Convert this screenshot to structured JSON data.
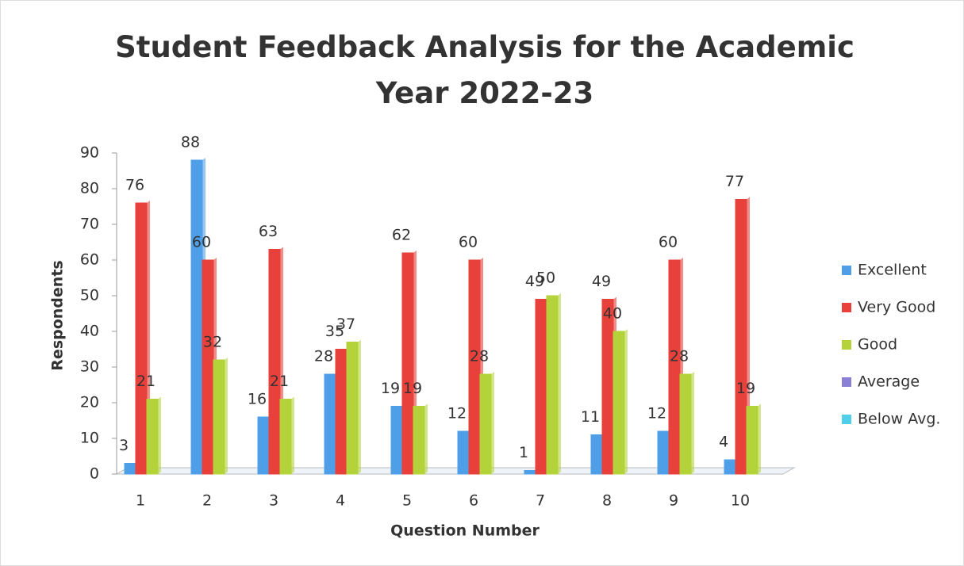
{
  "chart_data": {
    "type": "bar",
    "title": "Student Feedback Analysis for the Academic Year 2022-23",
    "x_label": "Question Number",
    "y_label": "Respondents",
    "categories": [
      "1",
      "2",
      "3",
      "4",
      "5",
      "6",
      "7",
      "8",
      "9",
      "10"
    ],
    "series": [
      {
        "name": "Excellent",
        "color": "#4f9fe8",
        "values": [
          3,
          88,
          16,
          28,
          19,
          12,
          1,
          11,
          12,
          4
        ]
      },
      {
        "name": "Very Good",
        "color": "#e8403a",
        "values": [
          76,
          60,
          63,
          35,
          62,
          60,
          49,
          49,
          60,
          77
        ]
      },
      {
        "name": "Good",
        "color": "#b4d33a",
        "values": [
          21,
          32,
          21,
          37,
          19,
          28,
          50,
          40,
          28,
          19
        ]
      },
      {
        "name": "Average",
        "color": "#8a7fd6",
        "values": [
          0,
          0,
          0,
          0,
          0,
          0,
          0,
          0,
          0,
          0
        ]
      },
      {
        "name": "Below Avg.",
        "color": "#4fd0e8",
        "values": [
          0,
          0,
          0,
          0,
          0,
          0,
          0,
          0,
          0,
          0
        ]
      }
    ],
    "labeled_series": [
      "Excellent",
      "Very Good",
      "Good"
    ],
    "ylim": [
      0,
      90
    ],
    "yticks": [
      0,
      10,
      20,
      30,
      40,
      50,
      60,
      70,
      80,
      90
    ],
    "legend": "right",
    "grid": false
  }
}
